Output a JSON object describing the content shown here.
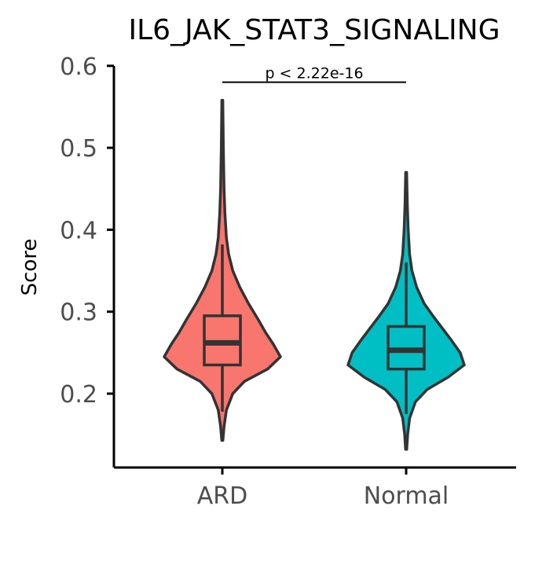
{
  "chart_data": {
    "type": "violin",
    "title": "IL6_JAK_STAT3_SIGNALING",
    "xlabel": "",
    "ylabel": "Score",
    "ylim": [
      0.11,
      0.6
    ],
    "yticks": [
      0.2,
      0.3,
      0.4,
      0.5,
      0.6
    ],
    "ytick_labels": [
      "0.2",
      "0.3",
      "0.4",
      "0.5",
      "0.6"
    ],
    "categories": [
      "ARD",
      "Normal"
    ],
    "series": [
      {
        "category": "ARD",
        "color": "#F8766D",
        "min": 0.143,
        "max": 0.558,
        "box": {
          "q1": 0.235,
          "median": 0.262,
          "q3": 0.295,
          "lower_whisker": 0.178,
          "upper_whisker": 0.382
        },
        "density": [
          [
            0.143,
            0.01
          ],
          [
            0.16,
            0.03
          ],
          [
            0.18,
            0.07
          ],
          [
            0.2,
            0.18
          ],
          [
            0.215,
            0.38
          ],
          [
            0.23,
            0.78
          ],
          [
            0.245,
            1.0
          ],
          [
            0.26,
            0.88
          ],
          [
            0.275,
            0.74
          ],
          [
            0.29,
            0.62
          ],
          [
            0.31,
            0.45
          ],
          [
            0.33,
            0.3
          ],
          [
            0.35,
            0.18
          ],
          [
            0.37,
            0.11
          ],
          [
            0.39,
            0.07
          ],
          [
            0.42,
            0.045
          ],
          [
            0.45,
            0.03
          ],
          [
            0.5,
            0.018
          ],
          [
            0.558,
            0.008
          ]
        ]
      },
      {
        "category": "Normal",
        "color": "#00BFC4",
        "min": 0.132,
        "max": 0.47,
        "box": {
          "q1": 0.23,
          "median": 0.253,
          "q3": 0.282,
          "lower_whisker": 0.175,
          "upper_whisker": 0.36
        },
        "density": [
          [
            0.132,
            0.01
          ],
          [
            0.15,
            0.025
          ],
          [
            0.17,
            0.06
          ],
          [
            0.19,
            0.16
          ],
          [
            0.205,
            0.36
          ],
          [
            0.22,
            0.72
          ],
          [
            0.235,
            1.0
          ],
          [
            0.25,
            0.93
          ],
          [
            0.265,
            0.78
          ],
          [
            0.28,
            0.62
          ],
          [
            0.295,
            0.46
          ],
          [
            0.31,
            0.31
          ],
          [
            0.33,
            0.18
          ],
          [
            0.35,
            0.1
          ],
          [
            0.37,
            0.06
          ],
          [
            0.4,
            0.035
          ],
          [
            0.43,
            0.02
          ],
          [
            0.47,
            0.008
          ]
        ]
      }
    ],
    "annotation": {
      "text": "p < 2.22e-16",
      "y": 0.58,
      "from": "ARD",
      "to": "Normal"
    },
    "grid": false,
    "legend": "none"
  }
}
